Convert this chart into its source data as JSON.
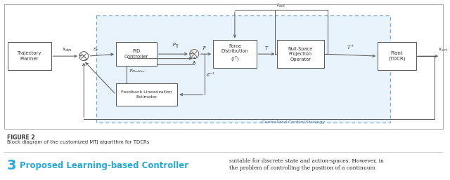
{
  "fig_width": 6.4,
  "fig_height": 2.57,
  "dpi": 100,
  "bg_color": "#ffffff",
  "figure_label": "FIGURE 2",
  "figure_caption": "Block diagram of the customized MTJ algorithm for TDCRs",
  "section_number": "3",
  "section_title": "Proposed Learning-based Controller",
  "right_text": "suitable for discrete state and action-spaces. However, in",
  "right_text2": "the problem of controlling the position of a continuum",
  "outer_box_bg": "#e8f2fa",
  "dashed_color": "#7aaac8",
  "box_edge": "#555555",
  "arrow_color": "#555555",
  "text_color": "#333333",
  "caption_color": "#555555",
  "section_color": "#29a8d4"
}
